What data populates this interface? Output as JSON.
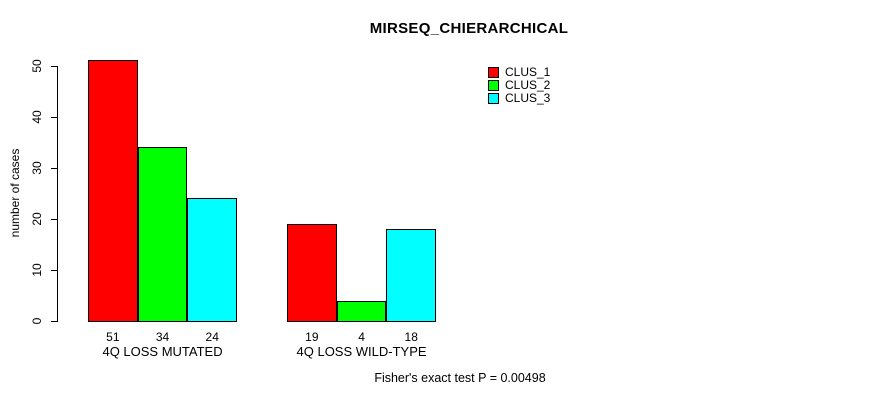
{
  "chart_data": {
    "type": "bar",
    "title": "MIRSEQ_CHIERARCHICAL",
    "ylabel": "number of cases",
    "xlabel": "",
    "ylim": [
      0,
      50
    ],
    "yticks": [
      0,
      10,
      20,
      30,
      40,
      50
    ],
    "grid": false,
    "legend_position": "top-right",
    "categories": [
      "4Q LOSS MUTATED",
      "4Q LOSS WILD-TYPE"
    ],
    "series": [
      {
        "name": "CLUS_1",
        "color": "#FF0000",
        "values": [
          51,
          19
        ]
      },
      {
        "name": "CLUS_2",
        "color": "#00FF00",
        "values": [
          34,
          4
        ]
      },
      {
        "name": "CLUS_3",
        "color": "#00FFFF",
        "values": [
          24,
          18
        ]
      }
    ],
    "bar_value_labels_shown": true,
    "annotation": "Fisher's exact test P = 0.00498"
  }
}
